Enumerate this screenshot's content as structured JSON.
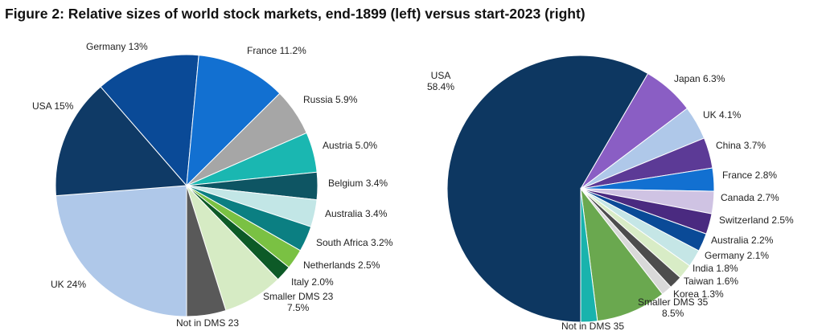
{
  "title": "Figure 2: Relative sizes of world stock markets, end-1899 (left) versus start-2023 (right)",
  "chart_data": [
    {
      "type": "pie",
      "title": "",
      "slices": [
        {
          "label": "UK 24%",
          "value": 24,
          "color": "#afc8e9"
        },
        {
          "label": "USA 15%",
          "value": 15,
          "color": "#0f3a66"
        },
        {
          "label": "Germany 13%",
          "value": 13,
          "color": "#0a4a97"
        },
        {
          "label": "France 11.2%",
          "value": 11.2,
          "color": "#1270d1"
        },
        {
          "label": "Russia 5.9%",
          "value": 5.9,
          "color": "#a6a6a6"
        },
        {
          "label": "Austria 5.0%",
          "value": 5.0,
          "color": "#1ab7b1"
        },
        {
          "label": "Belgium 3.4%",
          "value": 3.4,
          "color": "#0e5563"
        },
        {
          "label": "Australia 3.4%",
          "value": 3.4,
          "color": "#c2e6e6"
        },
        {
          "label": "South Africa 3.2%",
          "value": 3.2,
          "color": "#0b7f82"
        },
        {
          "label": "Netherlands 2.5%",
          "value": 2.5,
          "color": "#7ac143"
        },
        {
          "label": "Italy 2.0%",
          "value": 2.0,
          "color": "#0d5a27"
        },
        {
          "label": "Smaller DMS 23\n7.5%",
          "value": 7.5,
          "color": "#d6ebc4"
        },
        {
          "label": "Not in DMS 23",
          "value": 4.9,
          "color": "#595959"
        }
      ]
    },
    {
      "type": "pie",
      "title": "",
      "slices": [
        {
          "label": "USA\n58.4%",
          "value": 58.4,
          "color": "#0d3761"
        },
        {
          "label": "Japan 6.3%",
          "value": 6.3,
          "color": "#8a5ec4"
        },
        {
          "label": "UK 4.1%",
          "value": 4.1,
          "color": "#afc8e9"
        },
        {
          "label": "China 3.7%",
          "value": 3.7,
          "color": "#5c3a96"
        },
        {
          "label": "France 2.8%",
          "value": 2.8,
          "color": "#1270d1"
        },
        {
          "label": "Canada 2.7%",
          "value": 2.7,
          "color": "#cfc3e3"
        },
        {
          "label": "Switzerland 2.5%",
          "value": 2.5,
          "color": "#4a2a80"
        },
        {
          "label": "Australia 2.2%",
          "value": 2.2,
          "color": "#0a4a97"
        },
        {
          "label": "Germany 2.1%",
          "value": 2.1,
          "color": "#c5e6e6"
        },
        {
          "label": "India 1.8%",
          "value": 1.8,
          "color": "#d8ecc6"
        },
        {
          "label": "Taiwan 1.6%",
          "value": 1.6,
          "color": "#4d4d4d"
        },
        {
          "label": "Korea 1.3%",
          "value": 1.3,
          "color": "#d9d9d9"
        },
        {
          "label": "Smaller DMS 35\n8.5%",
          "value": 8.5,
          "color": "#6aa84f"
        },
        {
          "label": "Not in DMS 35",
          "value": 2.0,
          "color": "#19b3ad"
        }
      ]
    }
  ]
}
